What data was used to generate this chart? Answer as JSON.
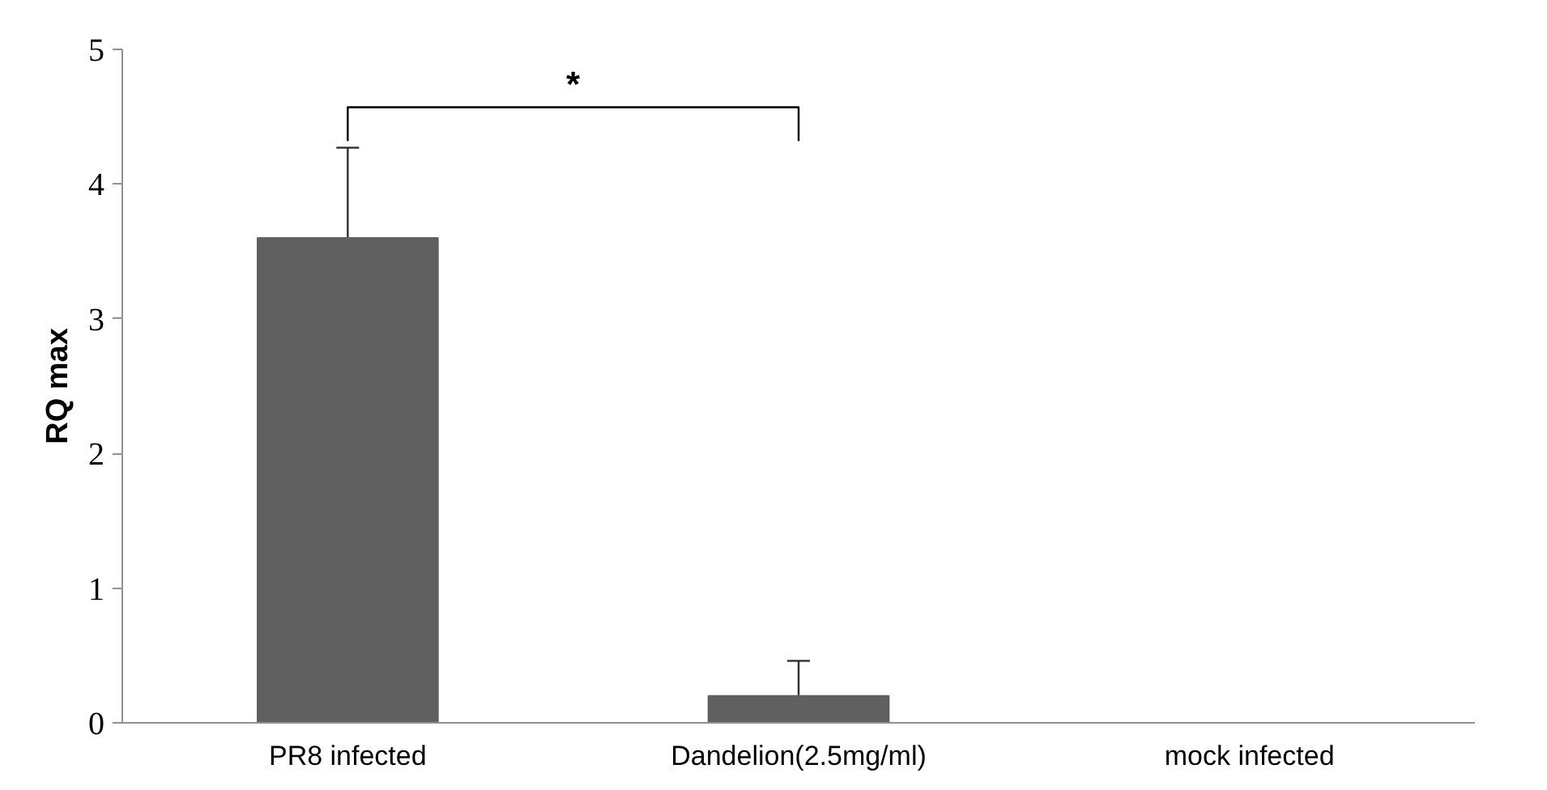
{
  "chart_data": {
    "type": "bar",
    "ylabel": "RQ max",
    "categories": [
      "PR8 infected",
      "Dandelion(2.5mg/ml)",
      "mock infected"
    ],
    "values": [
      3.6,
      0.2,
      0
    ],
    "errors": [
      [
        3.6,
        4.27
      ],
      [
        0.2,
        0.46
      ],
      null
    ],
    "color": "#606060",
    "ylim": [
      0,
      5
    ],
    "yticks": [
      0,
      1,
      2,
      3,
      4,
      5
    ],
    "grid": false,
    "annotations": [
      "*"
    ]
  }
}
